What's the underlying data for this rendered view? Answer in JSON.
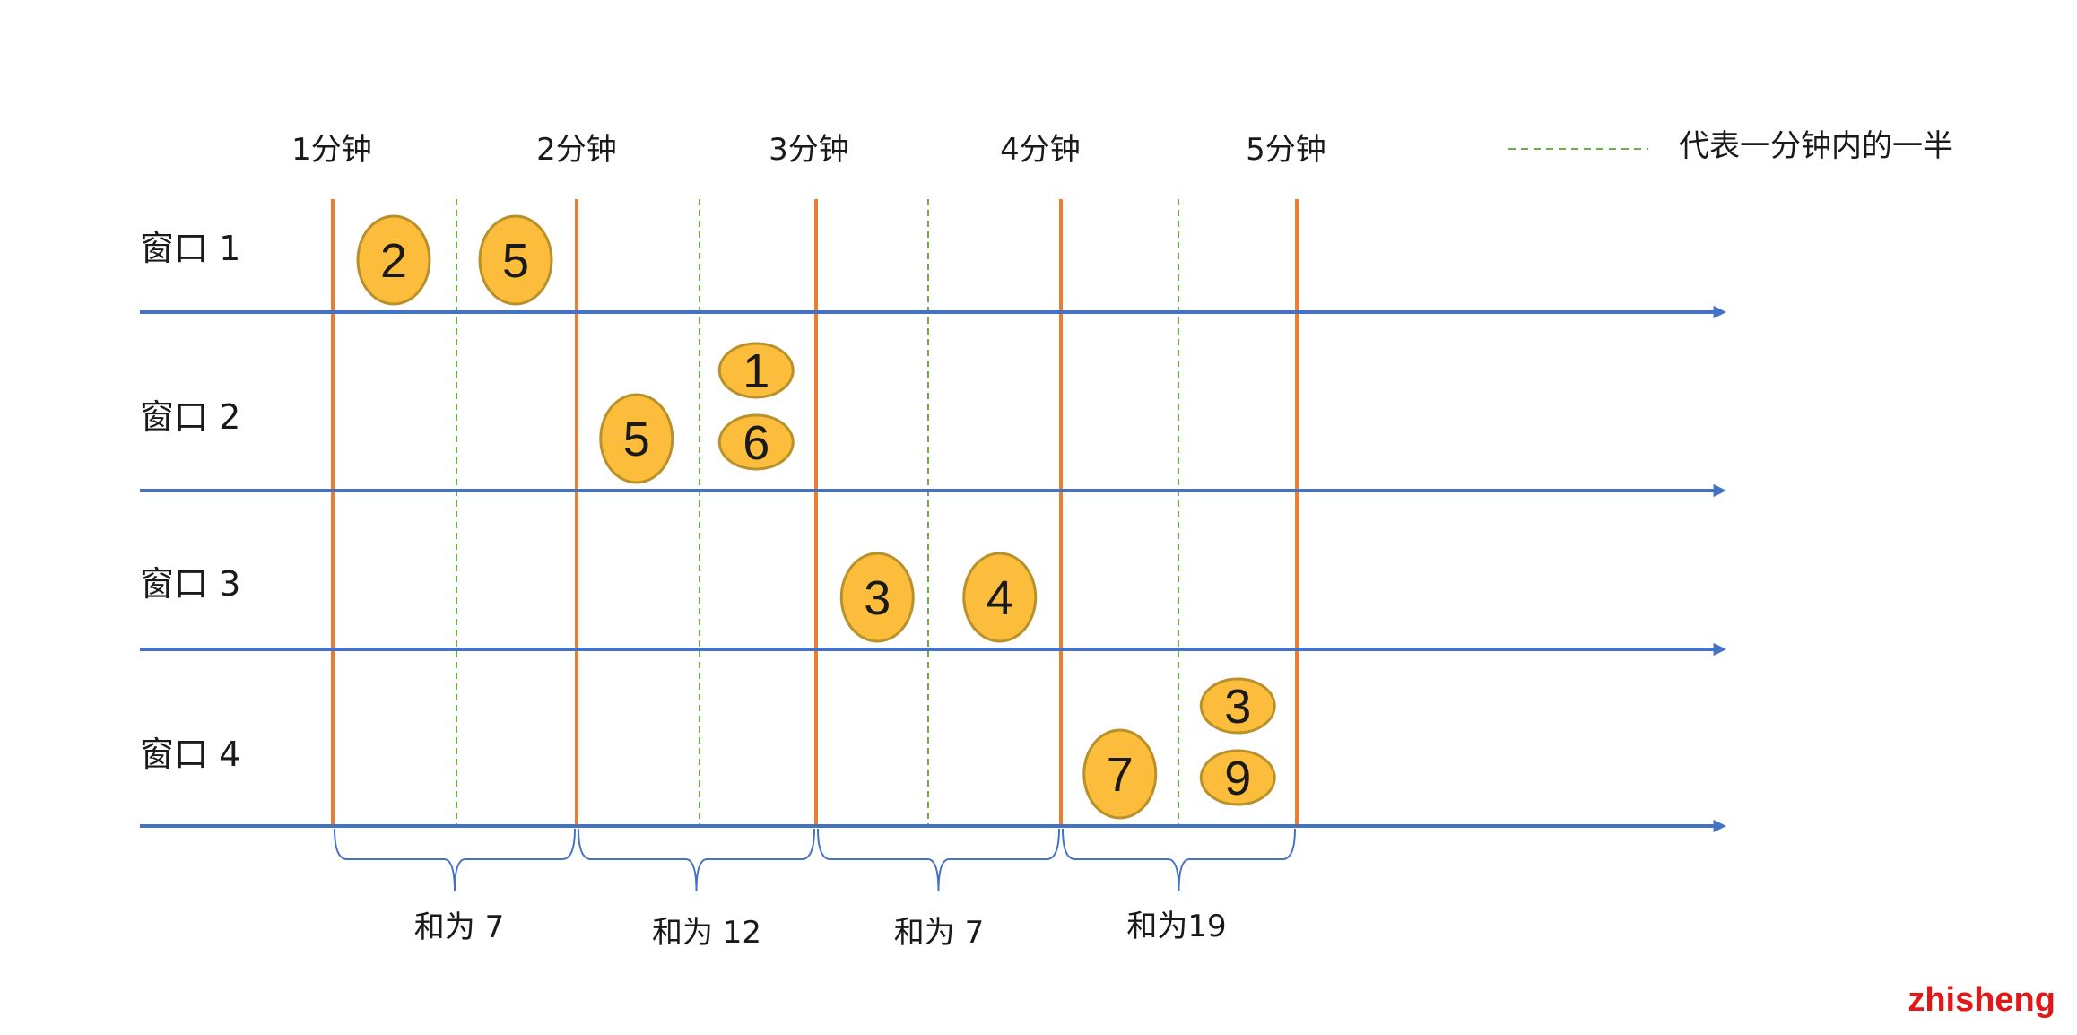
{
  "legend": {
    "text": "代表一分钟内的一半",
    "line_color": "#70ad47"
  },
  "colors": {
    "axis": "#4472c4",
    "minute_line": "#ed7d31",
    "half_line": "#70ad47",
    "event_fill": "#fbbd3b",
    "event_stroke": "#b8912a",
    "brace": "#4472c4",
    "brand": "#e01818"
  },
  "minutes": [
    "1分钟",
    "2分钟",
    "3分钟",
    "4分钟",
    "5分钟"
  ],
  "windows": [
    {
      "label": "窗口 1",
      "events": [
        {
          "minute": 1,
          "half": 1,
          "values": [
            "2"
          ]
        },
        {
          "minute": 1,
          "half": 2,
          "values": [
            "5"
          ]
        }
      ]
    },
    {
      "label": "窗口 2",
      "events": [
        {
          "minute": 2,
          "half": 1,
          "values": [
            "5"
          ]
        },
        {
          "minute": 2,
          "half": 2,
          "values": [
            "1",
            "6"
          ]
        }
      ]
    },
    {
      "label": "窗口 3",
      "events": [
        {
          "minute": 3,
          "half": 1,
          "values": [
            "3"
          ]
        },
        {
          "minute": 3,
          "half": 2,
          "values": [
            "4"
          ]
        }
      ]
    },
    {
      "label": "窗口 4",
      "events": [
        {
          "minute": 4,
          "half": 1,
          "values": [
            "7"
          ]
        },
        {
          "minute": 4,
          "half": 2,
          "values": [
            "3",
            "9"
          ]
        }
      ]
    }
  ],
  "sums": [
    "和为 7",
    "和为 12",
    "和为 7",
    "和为19"
  ],
  "brand": "zhisheng"
}
